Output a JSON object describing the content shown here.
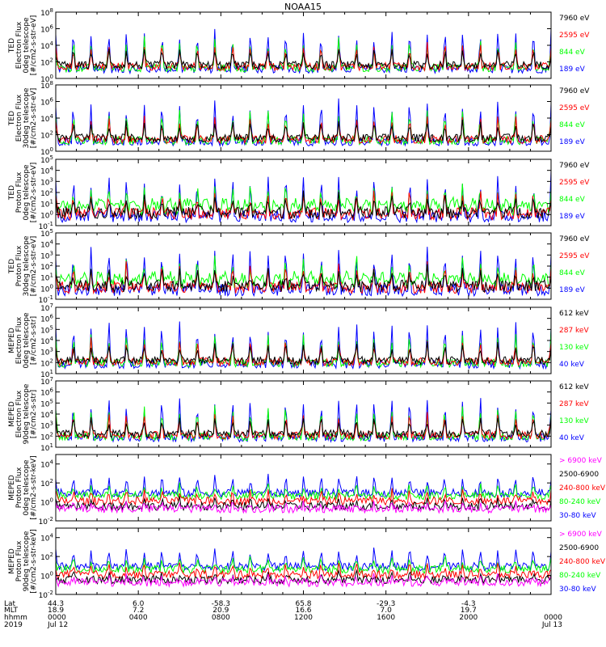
{
  "title": "NOAA15",
  "colors": {
    "black": "#000000",
    "red": "#ff0000",
    "green": "#00ff00",
    "blue": "#0000ff",
    "magenta": "#ff00ff"
  },
  "chart_data": [
    {
      "type": "line",
      "ylabel": [
        "TED",
        "Electron Flux",
        "0deg telescope",
        "[#/cm2-s-str-eV]"
      ],
      "ylim": [
        1,
        100000000.0
      ],
      "yscale": "log",
      "yticks": [
        "10^0",
        "10^2",
        "10^4",
        "10^6",
        "10^8"
      ],
      "series": [
        {
          "name": "7960 eV",
          "color": "#000000"
        },
        {
          "name": "2595 eV",
          "color": "#ff0000"
        },
        {
          "name": "844 eV",
          "color": "#00ff00"
        },
        {
          "name": "189 eV",
          "color": "#0000ff"
        }
      ]
    },
    {
      "type": "line",
      "ylabel": [
        "TED",
        "Electron Flux",
        "30deg telescope",
        "[#/cm2-s-str-eV]"
      ],
      "ylim": [
        1,
        100000000.0
      ],
      "yscale": "log",
      "yticks": [
        "10^0",
        "10^2",
        "10^4",
        "10^6",
        "10^8"
      ],
      "series": [
        {
          "name": "7960 eV",
          "color": "#000000"
        },
        {
          "name": "2595 eV",
          "color": "#ff0000"
        },
        {
          "name": "844 eV",
          "color": "#00ff00"
        },
        {
          "name": "189 eV",
          "color": "#0000ff"
        }
      ]
    },
    {
      "type": "line",
      "ylabel": [
        "TED",
        "Proton Flux",
        "0deg telescope",
        "[#/cm2-s-str-eV]"
      ],
      "ylim": [
        0.1,
        100000.0
      ],
      "yscale": "log",
      "yticks": [
        "10^-1",
        "10^0",
        "10^1",
        "10^2",
        "10^3",
        "10^4",
        "10^5"
      ],
      "series": [
        {
          "name": "7960 eV",
          "color": "#000000"
        },
        {
          "name": "2595 eV",
          "color": "#ff0000"
        },
        {
          "name": "844 eV",
          "color": "#00ff00"
        },
        {
          "name": "189 eV",
          "color": "#0000ff"
        }
      ]
    },
    {
      "type": "line",
      "ylabel": [
        "TED",
        "Proton Flux",
        "30deg telescope",
        "[#/cm2-s-str-eV]"
      ],
      "ylim": [
        0.1,
        100000.0
      ],
      "yscale": "log",
      "yticks": [
        "10^-1",
        "10^0",
        "10^1",
        "10^2",
        "10^3",
        "10^4",
        "10^5"
      ],
      "series": [
        {
          "name": "7960 eV",
          "color": "#000000"
        },
        {
          "name": "2595 eV",
          "color": "#ff0000"
        },
        {
          "name": "844 eV",
          "color": "#00ff00"
        },
        {
          "name": "189 eV",
          "color": "#0000ff"
        }
      ]
    },
    {
      "type": "line",
      "ylabel": [
        "MEPED",
        "Electron Flux",
        "0deg telescope",
        "[#/cm2-s-str]"
      ],
      "ylim": [
        10,
        10000000.0
      ],
      "yscale": "log",
      "yticks": [
        "10^1",
        "10^2",
        "10^3",
        "10^4",
        "10^5",
        "10^6",
        "10^7"
      ],
      "series": [
        {
          "name": "612 keV",
          "color": "#000000"
        },
        {
          "name": "287 keV",
          "color": "#ff0000"
        },
        {
          "name": "130 keV",
          "color": "#00ff00"
        },
        {
          "name": "40 keV",
          "color": "#0000ff"
        }
      ]
    },
    {
      "type": "line",
      "ylabel": [
        "MEPED",
        "Electron Flux",
        "90deg telescope",
        "[#/cm2-s-str]"
      ],
      "ylim": [
        10,
        10000000.0
      ],
      "yscale": "log",
      "yticks": [
        "10^1",
        "10^2",
        "10^3",
        "10^4",
        "10^5",
        "10^6",
        "10^7"
      ],
      "series": [
        {
          "name": "612 keV",
          "color": "#000000"
        },
        {
          "name": "287 keV",
          "color": "#ff0000"
        },
        {
          "name": "130 keV",
          "color": "#00ff00"
        },
        {
          "name": "40 keV",
          "color": "#0000ff"
        }
      ]
    },
    {
      "type": "line",
      "ylabel": [
        "MEPED",
        "Proton Flux",
        "0deg telescope",
        "[#/cm2-s-str-keV]"
      ],
      "ylim": [
        0.01,
        100000.0
      ],
      "yscale": "log",
      "yticks": [
        "10^-2",
        "10^0",
        "10^2",
        "10^4"
      ],
      "series": [
        {
          "name": "> 6900 keV",
          "color": "#ff00ff"
        },
        {
          "name": "2500-6900",
          "color": "#000000"
        },
        {
          "name": "240-800 keV",
          "color": "#ff0000"
        },
        {
          "name": "80-240 keV",
          "color": "#00ff00"
        },
        {
          "name": "30-80 keV",
          "color": "#0000ff"
        }
      ]
    },
    {
      "type": "line",
      "ylabel": [
        "MEPED",
        "Proton Flux",
        "90deg telescope",
        "[#/cm2-s-str-keV]"
      ],
      "ylim": [
        0.01,
        100000.0
      ],
      "yscale": "log",
      "yticks": [
        "10^-2",
        "10^0",
        "10^2",
        "10^4"
      ],
      "series": [
        {
          "name": "> 6900 keV",
          "color": "#ff00ff"
        },
        {
          "name": "2500-6900",
          "color": "#000000"
        },
        {
          "name": "240-800 keV",
          "color": "#ff0000"
        },
        {
          "name": "80-240 keV",
          "color": "#00ff00"
        },
        {
          "name": "30-80 keV",
          "color": "#0000ff"
        }
      ]
    }
  ],
  "xaxis": {
    "row_labels": [
      "Lat",
      "MLT",
      "hhmm",
      "2019"
    ],
    "ticks": [
      {
        "lat": "44.3",
        "mlt": "18.9",
        "hhmm": "0000",
        "date": "Jul 12"
      },
      {
        "lat": "6.0",
        "mlt": "7.2",
        "hhmm": "0400",
        "date": ""
      },
      {
        "lat": "-58.3",
        "mlt": "20.9",
        "hhmm": "0800",
        "date": ""
      },
      {
        "lat": "65.8",
        "mlt": "16.6",
        "hhmm": "1200",
        "date": ""
      },
      {
        "lat": "-29.3",
        "mlt": "7.0",
        "hhmm": "1600",
        "date": ""
      },
      {
        "lat": "-4.3",
        "mlt": "19.7",
        "hhmm": "2000",
        "date": ""
      },
      {
        "lat": "",
        "mlt": "",
        "hhmm": "0000",
        "date": "Jul 13"
      }
    ]
  }
}
